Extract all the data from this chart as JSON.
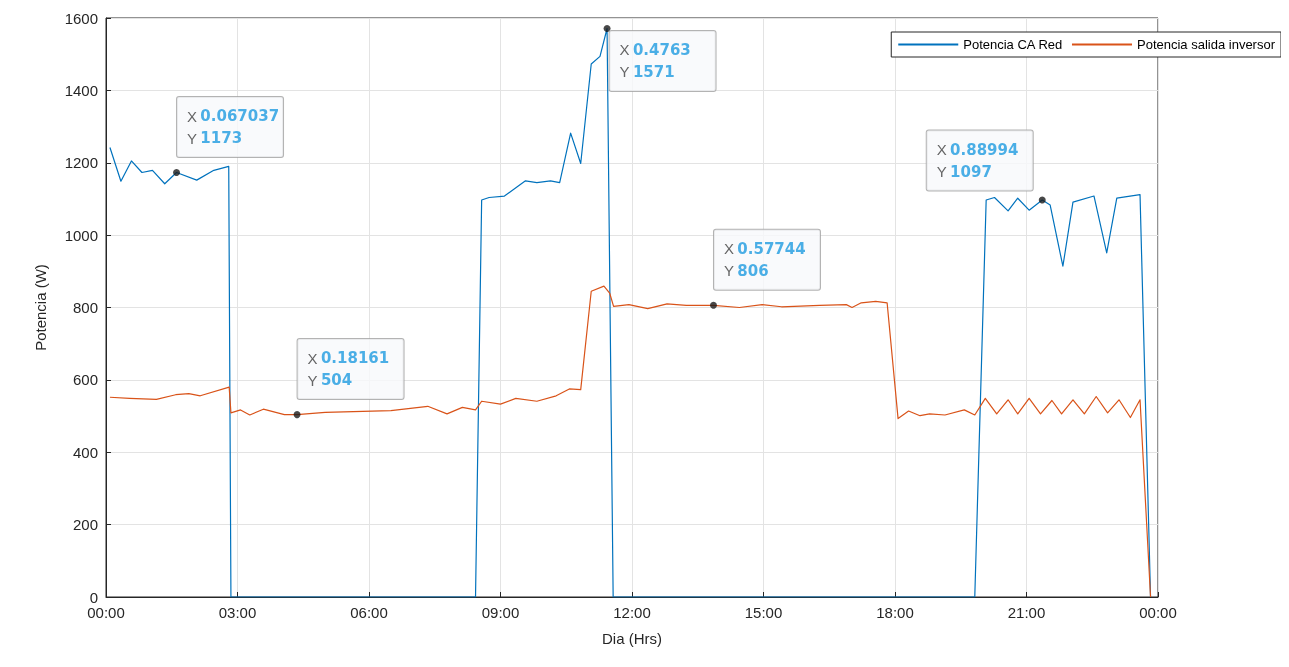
{
  "chart_data": {
    "type": "line",
    "xlabel": "Dia (Hrs)",
    "ylabel": "Potencia (W)",
    "xlim": [
      0,
      24
    ],
    "ylim": [
      0,
      1600
    ],
    "xticks": [
      {
        "value": 0,
        "label": "00:00"
      },
      {
        "value": 3,
        "label": "03:00"
      },
      {
        "value": 6,
        "label": "06:00"
      },
      {
        "value": 9,
        "label": "09:00"
      },
      {
        "value": 12,
        "label": "12:00"
      },
      {
        "value": 15,
        "label": "15:00"
      },
      {
        "value": 18,
        "label": "18:00"
      },
      {
        "value": 21,
        "label": "21:00"
      },
      {
        "value": 24,
        "label": "00:00"
      }
    ],
    "yticks": [
      0,
      200,
      400,
      600,
      800,
      1000,
      1200,
      1400,
      1600
    ],
    "grid": true,
    "legend": "top right",
    "marker": "none",
    "line_style": "solid",
    "series": [
      {
        "name": "Potencia CA Red",
        "color": "#0072bd",
        "x": [
          0.09,
          0.34,
          0.58,
          0.82,
          1.06,
          1.34,
          1.609,
          2.07,
          2.46,
          2.8,
          2.85,
          8.43,
          8.57,
          8.74,
          9.09,
          9.57,
          9.83,
          10.14,
          10.35,
          10.6,
          10.83,
          11.07,
          11.27,
          11.431,
          11.57,
          19.82,
          20.08,
          20.27,
          20.58,
          20.8,
          21.06,
          21.359,
          21.54,
          21.83,
          22.06,
          22.54,
          22.83,
          23.06,
          23.59,
          23.83
        ],
        "values": [
          1242,
          1149,
          1205,
          1173,
          1179,
          1142,
          1173,
          1152,
          1179,
          1190,
          0,
          0,
          1097,
          1104,
          1108,
          1150,
          1145,
          1150,
          1145,
          1282,
          1198,
          1473,
          1494,
          1571,
          0,
          0,
          1097,
          1104,
          1067,
          1102,
          1069,
          1097,
          1083,
          914,
          1091,
          1108,
          951,
          1102,
          1112,
          0
        ]
      },
      {
        "name": "Potencia salida inversor",
        "color": "#d95319",
        "x": [
          0.09,
          0.54,
          1.15,
          1.59,
          1.89,
          2.15,
          2.81,
          2.85,
          3.07,
          3.28,
          3.59,
          4.07,
          4.359,
          5.0,
          6.5,
          7.34,
          7.78,
          8.13,
          8.43,
          8.57,
          9.0,
          9.35,
          9.83,
          10.27,
          10.57,
          10.83,
          11.07,
          11.36,
          11.49,
          11.58,
          11.93,
          12.36,
          12.8,
          13.24,
          13.859,
          14.45,
          14.97,
          15.41,
          16.28,
          16.89,
          17.02,
          17.23,
          17.56,
          17.82,
          18.07,
          18.31,
          18.57,
          18.79,
          19.14,
          19.58,
          19.82,
          20.06,
          20.32,
          20.58,
          20.8,
          21.06,
          21.32,
          21.58,
          21.8,
          22.06,
          22.32,
          22.59,
          22.85,
          23.11,
          23.37,
          23.59,
          23.83
        ],
        "values": [
          552,
          549,
          546,
          559,
          562,
          556,
          580,
          509,
          517,
          503,
          519,
          504,
          504,
          510,
          515,
          527,
          506,
          524,
          517,
          541,
          533,
          549,
          541,
          556,
          575,
          573,
          845,
          859,
          840,
          803,
          808,
          797,
          810,
          806,
          806,
          800,
          808,
          802,
          806,
          808,
          800,
          813,
          817,
          813,
          493,
          514,
          501,
          506,
          503,
          517,
          503,
          549,
          506,
          545,
          506,
          549,
          506,
          543,
          506,
          545,
          506,
          554,
          509,
          545,
          496,
          545,
          0
        ]
      }
    ],
    "annotations": [
      {
        "text": "X 0.067037\nY 1173",
        "x": 1.609,
        "y": 1173
      },
      {
        "text": "X 0.18161\nY 504",
        "x": 4.359,
        "y": 504
      },
      {
        "text": "X 0.4763\nY 1571",
        "x": 11.431,
        "y": 1571
      },
      {
        "text": "X 0.57744\nY 806",
        "x": 13.859,
        "y": 806
      },
      {
        "text": "X 0.88994\nY 1097",
        "x": 21.359,
        "y": 1097
      }
    ]
  }
}
